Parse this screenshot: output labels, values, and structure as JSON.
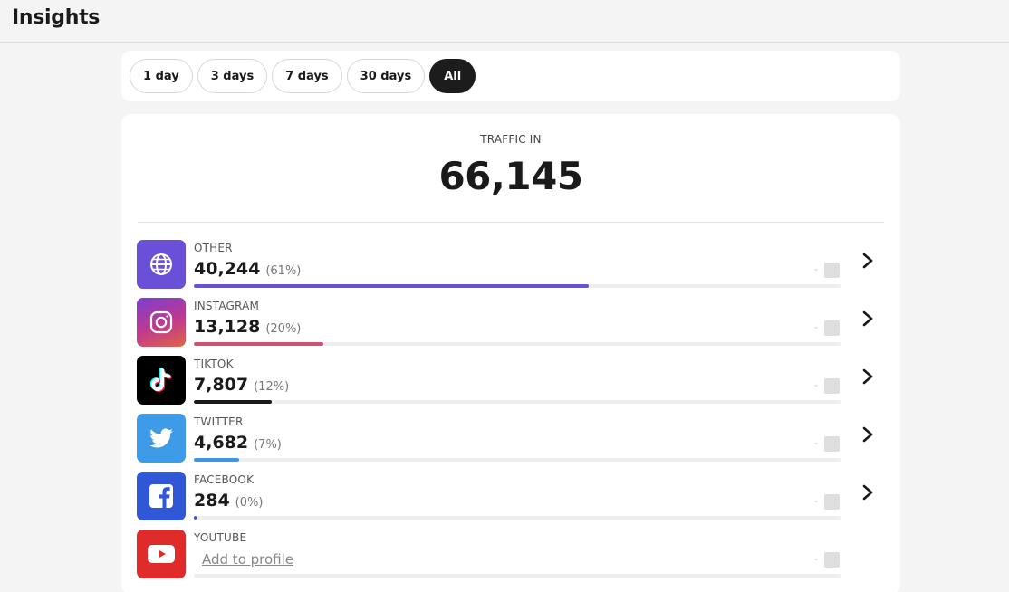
{
  "header": {
    "title": "Insights"
  },
  "filters": [
    {
      "label": "1 day",
      "active": false
    },
    {
      "label": "3 days",
      "active": false
    },
    {
      "label": "7 days",
      "active": false
    },
    {
      "label": "30 days",
      "active": false
    },
    {
      "label": "All",
      "active": true
    }
  ],
  "summary": {
    "label": "TRAFFIC IN",
    "total": "66,145"
  },
  "sources": [
    {
      "name": "OTHER",
      "count": "40,244",
      "percent": "(61%)",
      "share": 0.61,
      "color": "#6a4fd8",
      "icon": "globe-icon",
      "change": "-"
    },
    {
      "name": "INSTAGRAM",
      "count": "13,128",
      "percent": "(20%)",
      "share": 0.2,
      "color": "#d2506f",
      "icon": "instagram-icon",
      "change": "-"
    },
    {
      "name": "TIKTOK",
      "count": "7,807",
      "percent": "(12%)",
      "share": 0.12,
      "color": "#1a1a1a",
      "icon": "tiktok-icon",
      "change": "-"
    },
    {
      "name": "TWITTER",
      "count": "4,682",
      "percent": "(7%)",
      "share": 0.07,
      "color": "#3b97e6",
      "icon": "twitter-icon",
      "change": "-"
    },
    {
      "name": "FACEBOOK",
      "count": "284",
      "percent": "(0%)",
      "share": 0.004,
      "color": "#2f57d6",
      "icon": "facebook-icon",
      "change": "-"
    },
    {
      "name": "YOUTUBE",
      "action": "Add to profile",
      "share": 0,
      "color": "#e02b2b",
      "icon": "youtube-icon",
      "change": "-"
    }
  ]
}
